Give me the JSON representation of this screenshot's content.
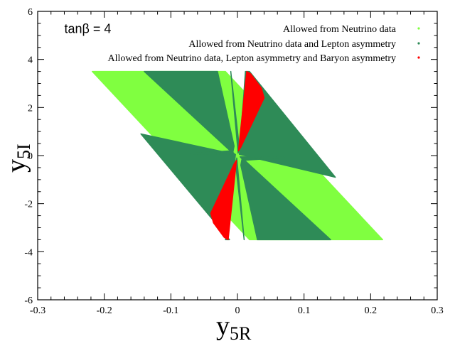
{
  "chart_data": {
    "type": "scatter",
    "xlim": [
      -0.3,
      0.3
    ],
    "ylim": [
      -6,
      6
    ],
    "x_ticks": [
      -0.3,
      -0.2,
      -0.1,
      0,
      0.1,
      0.2,
      0.3
    ],
    "y_ticks": [
      -6,
      -4,
      -2,
      0,
      2,
      4,
      6
    ],
    "x_tick_labels": [
      "-0.3",
      "-0.2",
      "-0.1",
      "0",
      "0.1",
      "0.2",
      "0.3"
    ],
    "y_tick_labels": [
      "-6",
      "-4",
      "-2",
      "0",
      "2",
      "4",
      "6"
    ],
    "xlabel": {
      "base": "y",
      "sub": "5R"
    },
    "ylabel": {
      "base": "y",
      "sub": "5I"
    },
    "annotation": {
      "text": "tanβ = 4",
      "x": -0.26,
      "y": 5.1
    },
    "legend_position": "top-right",
    "grid": false,
    "series": [
      {
        "name": "Allowed from Neutrino data",
        "color": "#80ff40",
        "regions": [
          [
            [
              -0.218,
              3.5
            ],
            [
              -0.018,
              3.5
            ],
            [
              0.218,
              -3.5
            ],
            [
              0.018,
              -3.5
            ]
          ]
        ]
      },
      {
        "name": "Allowed from Neutrino data and Lepton asymmetry",
        "color": "#2e8b57",
        "regions": [
          [
            [
              -0.14,
              3.5
            ],
            [
              -0.03,
              3.5
            ],
            [
              -0.005,
              0.4
            ],
            [
              -0.007,
              0.1
            ]
          ],
          [
            [
              -0.01,
              3.5
            ],
            [
              -0.01,
              3.5
            ],
            [
              0.003,
              0.3
            ],
            [
              0.001,
              0.1
            ]
          ],
          [
            [
              0.012,
              3.5
            ],
            [
              0.018,
              3.5
            ],
            [
              0.147,
              -0.9
            ],
            [
              0.003,
              0.05
            ]
          ],
          [
            [
              -0.145,
              0.9
            ],
            [
              -0.003,
              0.05
            ],
            [
              -0.018,
              -3.5
            ],
            [
              -0.012,
              -3.5
            ]
          ],
          [
            [
              -0.001,
              -0.1
            ],
            [
              0.01,
              -3.5
            ],
            [
              0.01,
              -3.5
            ],
            [
              -0.003,
              -0.3
            ]
          ],
          [
            [
              0.007,
              -0.1
            ],
            [
              0.005,
              -0.4
            ],
            [
              0.03,
              -3.5
            ],
            [
              0.14,
              -3.5
            ]
          ],
          [
            [
              -0.009,
              0.2
            ],
            [
              -0.004,
              0.05
            ],
            [
              -0.07,
              0.08
            ],
            [
              -0.07,
              0.08
            ]
          ],
          [
            [
              0.009,
              -0.2
            ],
            [
              0.004,
              -0.05
            ],
            [
              0.07,
              -0.08
            ],
            [
              0.07,
              -0.08
            ]
          ]
        ]
      },
      {
        "name": "Allowed from Neutrino data, Lepton asymmetry and Baryon asymmetry",
        "color": "#ff0000",
        "regions": [
          [
            [
              0.0015,
              0.2
            ],
            [
              0.014,
              3.5
            ],
            [
              0.02,
              3.4
            ],
            [
              0.036,
              2.8
            ],
            [
              0.04,
              2.4
            ],
            [
              0.005,
              0.35
            ]
          ],
          [
            [
              -0.0015,
              -0.2
            ],
            [
              -0.014,
              -3.5
            ],
            [
              -0.02,
              -3.4
            ],
            [
              -0.036,
              -2.8
            ],
            [
              -0.04,
              -2.4
            ],
            [
              -0.005,
              -0.35
            ]
          ]
        ]
      }
    ]
  }
}
